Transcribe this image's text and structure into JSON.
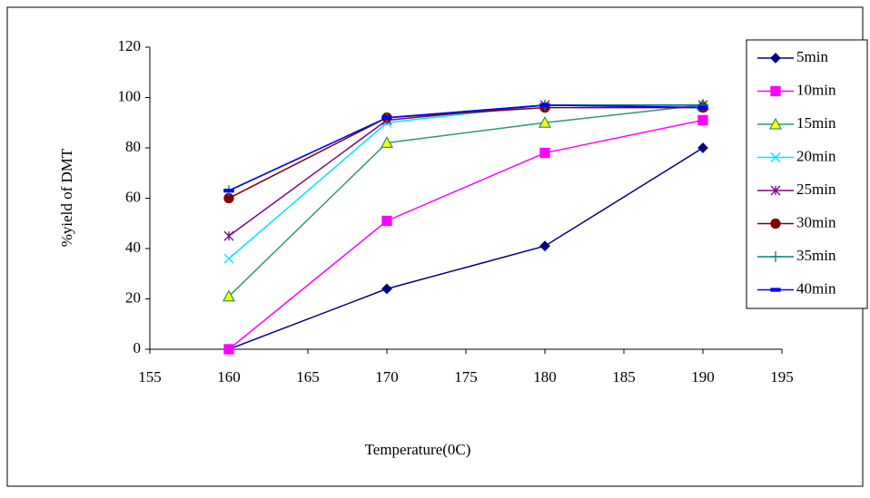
{
  "chart_data": {
    "type": "line",
    "x_label": "Temperature(0C)",
    "y_label": "%yield of DMT",
    "x": [
      160,
      170,
      180,
      190
    ],
    "xlim": [
      155,
      195
    ],
    "xticks": [
      155,
      160,
      165,
      170,
      175,
      180,
      185,
      190,
      195
    ],
    "ylim": [
      0,
      120
    ],
    "yticks": [
      0,
      20,
      40,
      60,
      80,
      100,
      120
    ],
    "legend": "right",
    "series": [
      {
        "name": "5min",
        "color": "#000080",
        "marker": "diamond",
        "values": [
          0,
          24,
          41,
          80
        ]
      },
      {
        "name": "10min",
        "color": "#ff00ff",
        "marker": "square",
        "values": [
          0,
          51,
          78,
          91
        ]
      },
      {
        "name": "15min",
        "color": "#339966",
        "marker": "triangle",
        "values": [
          21,
          82,
          90,
          97
        ]
      },
      {
        "name": "20min",
        "color": "#00e5ff",
        "marker": "x",
        "values": [
          36,
          90,
          97,
          96
        ]
      },
      {
        "name": "25min",
        "color": "#800080",
        "marker": "star",
        "values": [
          45,
          91,
          97,
          97
        ]
      },
      {
        "name": "30min",
        "color": "#800000",
        "marker": "circle",
        "values": [
          60,
          92,
          96,
          96
        ]
      },
      {
        "name": "35min",
        "color": "#008080",
        "marker": "plus",
        "values": [
          63,
          92,
          97,
          97
        ]
      },
      {
        "name": "40min",
        "color": "#0000ff",
        "marker": "dash",
        "values": [
          63,
          92,
          97,
          96
        ]
      }
    ]
  }
}
